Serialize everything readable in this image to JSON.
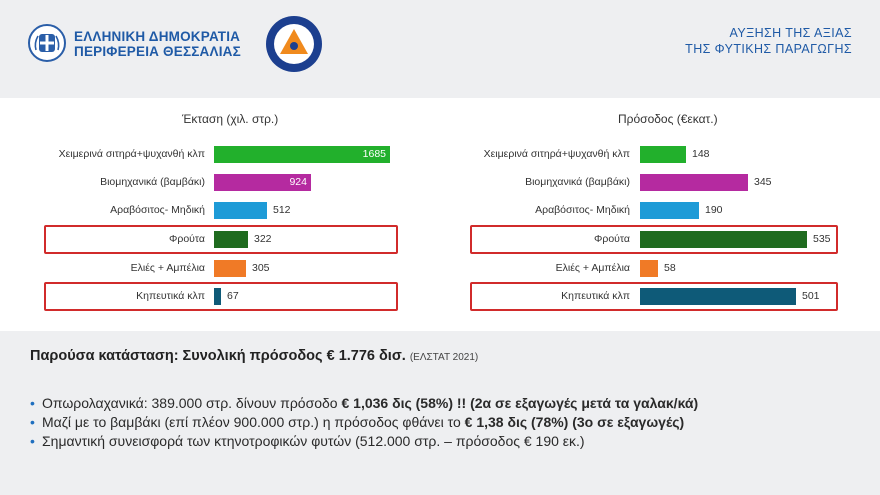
{
  "header": {
    "org_line1": "ΕΛΛΗΝΙΚΗ ΔΗΜΟΚΡΑΤΙΑ",
    "org_line2": "ΠΕΡΙΦΕΡΕΙΑ ΘΕΣΣΑΛΙΑΣ",
    "title_line1": "ΑΥΞΗΣΗ ΤΗΣ ΑΞΙΑΣ",
    "title_line2": "ΤΗΣ ΦΥΤΙΚΗΣ ΠΑΡΑΓΩΓΗΣ"
  },
  "colors": {
    "brand": "#1f5aa6",
    "highlight": "#d12b2b",
    "bar_colors": [
      "#22b02c",
      "#b52aa0",
      "#1e9bd7",
      "#1f6b1f",
      "#f07a26",
      "#0e5a78"
    ]
  },
  "chart_data": [
    {
      "type": "bar",
      "orientation": "horizontal",
      "title": "Έκταση (χιλ. στρ.)",
      "categories": [
        "Χειμερινά σιτηρά+ψυχανθή κλπ",
        "Βιομηχανικά (βαμβάκι)",
        "Αραβόσιτος- Μηδική",
        "Φρούτα",
        "Ελιές + Αμπέλια",
        "Κηπευτικά κλπ"
      ],
      "values": [
        1685,
        924,
        512,
        322,
        305,
        67
      ],
      "value_labels": [
        "1685",
        "924",
        "512",
        "322",
        "305",
        "67"
      ],
      "xlim": [
        0,
        1685
      ],
      "grid": false,
      "highlighted": [
        "Φρούτα",
        "Κηπευτικά κλπ"
      ]
    },
    {
      "type": "bar",
      "orientation": "horizontal",
      "title": "Πρόσοδος (€εκατ.)",
      "categories": [
        "Χειμερινά σιτηρά+ψυχανθή κλπ",
        "Βιομηχανικά (βαμβάκι)",
        "Αραβόσιτος- Μηδική",
        "Φρούτα",
        "Ελιές + Αμπέλια",
        "Κηπευτικά κλπ"
      ],
      "values": [
        148,
        345,
        190,
        535,
        58,
        501
      ],
      "value_labels": [
        "148",
        "345",
        "190",
        "535",
        "58",
        "501"
      ],
      "xlim": [
        0,
        535
      ],
      "grid": false,
      "highlighted": [
        "Φρούτα",
        "Κηπευτικά κλπ"
      ]
    }
  ],
  "summary": {
    "text": "Παρούσα κατάσταση: Συνολική πρόσοδος € 1.776 δισ.",
    "source": "(ΕΛΣΤΑΤ 2021)"
  },
  "bullets": [
    {
      "plain": "Οπωρολαχανικά: 389.000 στρ. δίνουν πρόσοδο ",
      "bold": "€ 1,036 δις (58%) !!  (2α σε εξαγωγές μετά τα γαλακ/κά)"
    },
    {
      "plain": "Μαζί με το βαμβάκι (επί πλέον 900.000 στρ.) η πρόσοδος φθάνει το ",
      "bold": "€ 1,38 δις (78%) (3ο σε εξαγωγές)"
    },
    {
      "plain": "Σημαντική συνεισφορά των κτηνοτροφικών φυτών (512.000 στρ. – πρόσοδος € 190 εκ.)",
      "bold": ""
    }
  ]
}
